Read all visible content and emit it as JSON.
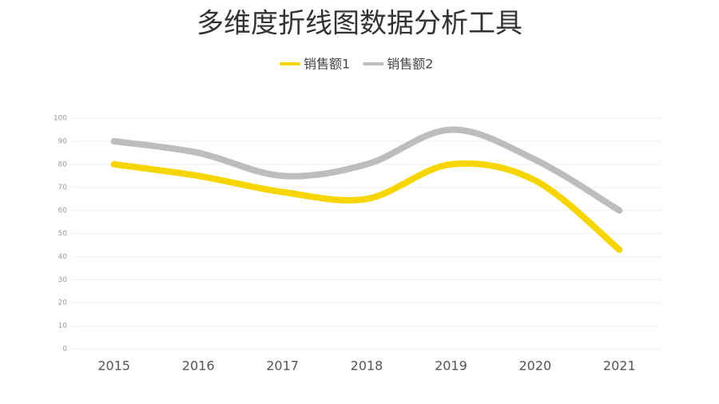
{
  "chart_data": {
    "type": "line",
    "title": "多维度折线图数据分析工具",
    "categories": [
      "2015",
      "2016",
      "2017",
      "2018",
      "2019",
      "2020",
      "2021"
    ],
    "series": [
      {
        "name": "销售额1",
        "color": "#f7d600",
        "values": [
          80,
          75,
          68,
          65,
          80,
          73,
          43
        ]
      },
      {
        "name": "销售额2",
        "color": "#bdbdbd",
        "values": [
          90,
          85,
          75,
          80,
          95,
          82,
          60
        ]
      }
    ],
    "ylim": [
      0,
      100
    ],
    "yticks": [
      0,
      10,
      20,
      30,
      40,
      50,
      60,
      70,
      80,
      90,
      100
    ],
    "grid": true,
    "smooth": true,
    "legend": "top"
  }
}
